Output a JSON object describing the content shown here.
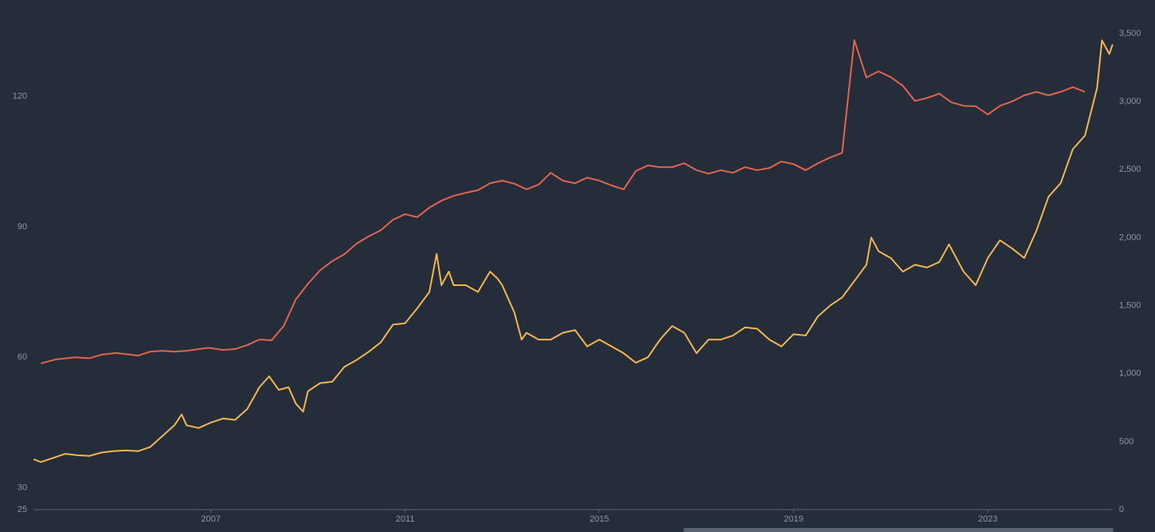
{
  "chart_data": {
    "type": "line",
    "xlim": [
      2003.35,
      2025.57
    ],
    "xticks": [
      2007,
      2011,
      2015,
      2019,
      2023
    ],
    "ylim": [
      25,
      134.4
    ],
    "yticks": [
      25,
      30,
      60,
      90,
      120
    ],
    "y2lim": [
      0,
      3500
    ],
    "y2ticks": [
      0,
      500,
      {
        "value": 1000,
        "label": "1,000"
      },
      {
        "value": 1500,
        "label": "1,500"
      },
      {
        "value": 2000,
        "label": "2,000"
      },
      {
        "value": 2500,
        "label": "2,500"
      },
      {
        "value": 3000,
        "label": "3,000"
      },
      {
        "value": 3500,
        "label": "3,500"
      }
    ],
    "series": [
      {
        "color": "#e0654f",
        "axis": "y",
        "x": [
          2003.5,
          2003.8,
          2004.2,
          2004.5,
          2004.75,
          2005.05,
          2005.5,
          2005.75,
          2006.0,
          2006.25,
          2006.5,
          2006.95,
          2007.25,
          2007.5,
          2007.75,
          2008.0,
          2008.25,
          2008.5,
          2008.75,
          2009.0,
          2009.25,
          2009.5,
          2009.75,
          2010.0,
          2010.25,
          2010.5,
          2010.75,
          2011.0,
          2011.25,
          2011.5,
          2011.75,
          2012.0,
          2012.25,
          2012.5,
          2012.75,
          2013.0,
          2013.25,
          2013.5,
          2013.75,
          2014.0,
          2014.25,
          2014.5,
          2014.75,
          2015.0,
          2015.25,
          2015.5,
          2015.75,
          2016.0,
          2016.25,
          2016.5,
          2016.75,
          2017.0,
          2017.25,
          2017.5,
          2017.75,
          2018.0,
          2018.25,
          2018.5,
          2018.75,
          2019.0,
          2019.25,
          2019.5,
          2019.75,
          2020.0,
          2020.25,
          2020.5,
          2020.75,
          2021.0,
          2021.25,
          2021.5,
          2021.75,
          2022.0,
          2022.25,
          2022.5,
          2022.75,
          2023.0,
          2023.25,
          2023.5,
          2023.75,
          2024.0,
          2024.25,
          2024.5,
          2024.75,
          2025.0
        ],
        "values": [
          58.6,
          59.5,
          60.0,
          59.8,
          60.6,
          61.0,
          60.4,
          61.3,
          61.5,
          61.3,
          61.5,
          62.2,
          61.7,
          61.9,
          62.8,
          64.1,
          63.9,
          67.2,
          73.3,
          76.9,
          80.0,
          82.1,
          83.7,
          86.1,
          87.8,
          89.2,
          91.6,
          92.9,
          92.2,
          94.4,
          96.0,
          97.1,
          97.8,
          98.4,
          100.0,
          100.6,
          99.9,
          98.6,
          99.7,
          102.4,
          100.6,
          100.0,
          101.3,
          100.6,
          99.5,
          98.6,
          102.8,
          104.1,
          103.7,
          103.7,
          104.6,
          103.0,
          102.2,
          103.0,
          102.4,
          103.7,
          103.0,
          103.5,
          105.0,
          104.4,
          103.0,
          104.6,
          105.9,
          107.0,
          132.9,
          124.3,
          125.7,
          124.4,
          122.4,
          118.9,
          119.6,
          120.6,
          118.6,
          117.8,
          117.7,
          115.8,
          117.8,
          118.8,
          120.2,
          121.0,
          120.2,
          121.0,
          122.1,
          121.0
        ]
      },
      {
        "color": "#f3b64d",
        "axis": "y2",
        "x": [
          2003.35,
          2003.5,
          2003.75,
          2004.0,
          2004.25,
          2004.5,
          2004.75,
          2005.0,
          2005.25,
          2005.5,
          2005.75,
          2006.0,
          2006.25,
          2006.4,
          2006.5,
          2006.75,
          2007.0,
          2007.25,
          2007.5,
          2007.75,
          2008.0,
          2008.2,
          2008.4,
          2008.6,
          2008.75,
          2008.9,
          2009.0,
          2009.25,
          2009.5,
          2009.75,
          2010.0,
          2010.25,
          2010.5,
          2010.75,
          2011.0,
          2011.25,
          2011.5,
          2011.65,
          2011.75,
          2011.9,
          2012.0,
          2012.25,
          2012.5,
          2012.75,
          2012.9,
          2013.0,
          2013.25,
          2013.4,
          2013.5,
          2013.75,
          2014.0,
          2014.25,
          2014.5,
          2014.75,
          2015.0,
          2015.25,
          2015.5,
          2015.75,
          2016.0,
          2016.25,
          2016.5,
          2016.75,
          2017.0,
          2017.25,
          2017.5,
          2017.75,
          2018.0,
          2018.25,
          2018.5,
          2018.75,
          2019.0,
          2019.25,
          2019.5,
          2019.75,
          2020.0,
          2020.25,
          2020.5,
          2020.6,
          2020.75,
          2021.0,
          2021.25,
          2021.5,
          2021.75,
          2022.0,
          2022.2,
          2022.5,
          2022.75,
          2023.0,
          2023.25,
          2023.5,
          2023.75,
          2024.0,
          2024.25,
          2024.5,
          2024.75,
          2025.0,
          2025.25,
          2025.35,
          2025.5,
          2025.57
        ],
        "values": [
          370,
          350,
          380,
          410,
          400,
          395,
          420,
          430,
          435,
          430,
          460,
          540,
          620,
          700,
          620,
          600,
          640,
          670,
          660,
          740,
          900,
          980,
          880,
          900,
          780,
          720,
          870,
          930,
          940,
          1050,
          1100,
          1160,
          1230,
          1360,
          1370,
          1480,
          1600,
          1880,
          1650,
          1750,
          1650,
          1650,
          1600,
          1750,
          1700,
          1650,
          1450,
          1250,
          1300,
          1250,
          1250,
          1300,
          1320,
          1200,
          1250,
          1200,
          1150,
          1080,
          1120,
          1250,
          1350,
          1300,
          1150,
          1250,
          1250,
          1280,
          1340,
          1330,
          1250,
          1200,
          1290,
          1280,
          1420,
          1500,
          1560,
          1680,
          1800,
          2000,
          1900,
          1850,
          1750,
          1800,
          1780,
          1820,
          1950,
          1750,
          1650,
          1850,
          1980,
          1920,
          1850,
          2050,
          2300,
          2400,
          2650,
          2750,
          3100,
          3450,
          3350,
          3420
        ]
      }
    ]
  }
}
